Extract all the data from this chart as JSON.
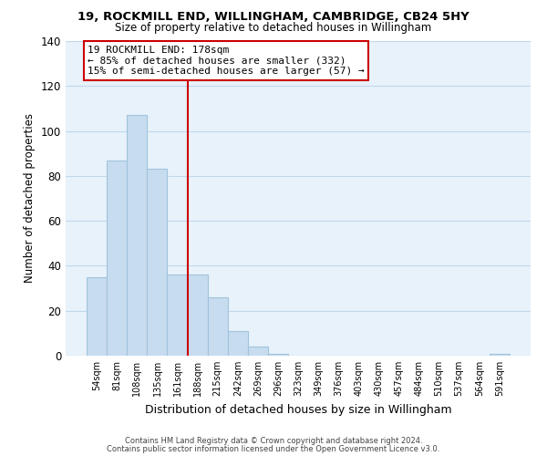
{
  "title": "19, ROCKMILL END, WILLINGHAM, CAMBRIDGE, CB24 5HY",
  "subtitle": "Size of property relative to detached houses in Willingham",
  "xlabel": "Distribution of detached houses by size in Willingham",
  "ylabel": "Number of detached properties",
  "bar_labels": [
    "54sqm",
    "81sqm",
    "108sqm",
    "135sqm",
    "161sqm",
    "188sqm",
    "215sqm",
    "242sqm",
    "269sqm",
    "296sqm",
    "323sqm",
    "349sqm",
    "376sqm",
    "403sqm",
    "430sqm",
    "457sqm",
    "484sqm",
    "510sqm",
    "537sqm",
    "564sqm",
    "591sqm"
  ],
  "bar_values": [
    35,
    87,
    107,
    83,
    36,
    36,
    26,
    11,
    4,
    1,
    0,
    0,
    0,
    0,
    0,
    0,
    0,
    0,
    0,
    0,
    1
  ],
  "bar_color": "#c8dcf0",
  "bar_edge_color": "#a0c4dc",
  "grid_color": "#c0d8ec",
  "bg_color": "#e8f2fb",
  "vline_color": "#cc0000",
  "annotation_title": "19 ROCKMILL END: 178sqm",
  "annotation_line1": "← 85% of detached houses are smaller (332)",
  "annotation_line2": "15% of semi-detached houses are larger (57) →",
  "annotation_box_color": "white",
  "annotation_box_edge": "#cc0000",
  "ylim": [
    0,
    140
  ],
  "yticks": [
    0,
    20,
    40,
    60,
    80,
    100,
    120,
    140
  ],
  "footer1": "Contains HM Land Registry data © Crown copyright and database right 2024.",
  "footer2": "Contains public sector information licensed under the Open Government Licence v3.0."
}
